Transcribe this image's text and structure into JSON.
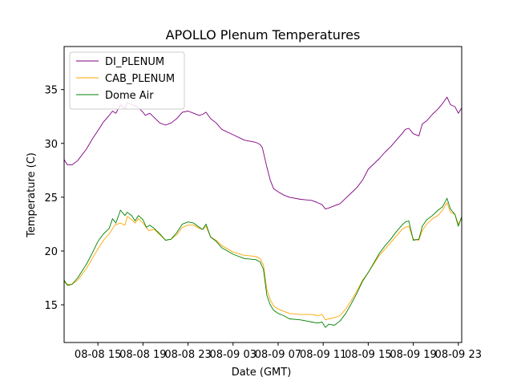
{
  "chart_data": {
    "type": "line",
    "title": "APOLLO Plenum Temperatures",
    "xlabel": "Date (GMT)",
    "ylabel": "Temperature (C)",
    "x_unit": "hours since 08-08 12:00 GMT",
    "xlim": [
      0,
      35.3
    ],
    "ylim": [
      11.5,
      39
    ],
    "x_ticks": [
      {
        "value": 3,
        "label": "08-08 15"
      },
      {
        "value": 7,
        "label": "08-08 19"
      },
      {
        "value": 11,
        "label": "08-08 23"
      },
      {
        "value": 15,
        "label": "08-09 03"
      },
      {
        "value": 19,
        "label": "08-09 07"
      },
      {
        "value": 23,
        "label": "08-09 11"
      },
      {
        "value": 27,
        "label": "08-09 15"
      },
      {
        "value": 31,
        "label": "08-09 19"
      },
      {
        "value": 35,
        "label": "08-09 23"
      }
    ],
    "y_ticks": [
      15,
      20,
      25,
      30,
      35
    ],
    "legend_position": "upper-left",
    "series": [
      {
        "name": "DI_PLENUM",
        "color": "#800080",
        "points": [
          [
            0,
            28.5
          ],
          [
            0.3,
            28.0
          ],
          [
            0.7,
            28.0
          ],
          [
            1.2,
            28.4
          ],
          [
            2,
            29.5
          ],
          [
            2.5,
            30.4
          ],
          [
            3,
            31.2
          ],
          [
            3.5,
            32.0
          ],
          [
            4,
            32.6
          ],
          [
            4.3,
            33.0
          ],
          [
            4.6,
            32.8
          ],
          [
            5,
            33.6
          ],
          [
            5.4,
            33.2
          ],
          [
            5.6,
            33.8
          ],
          [
            6,
            33.6
          ],
          [
            6.5,
            33.4
          ],
          [
            7,
            32.9
          ],
          [
            7.2,
            32.6
          ],
          [
            7.6,
            32.8
          ],
          [
            8,
            32.4
          ],
          [
            8.5,
            31.9
          ],
          [
            9,
            31.7
          ],
          [
            9.5,
            31.9
          ],
          [
            10,
            32.3
          ],
          [
            10.5,
            32.9
          ],
          [
            11,
            33.0
          ],
          [
            11.5,
            32.8
          ],
          [
            12,
            32.6
          ],
          [
            12.3,
            32.7
          ],
          [
            12.6,
            32.9
          ],
          [
            13,
            32.3
          ],
          [
            13.5,
            31.9
          ],
          [
            14,
            31.3
          ],
          [
            15,
            30.8
          ],
          [
            16,
            30.3
          ],
          [
            17,
            30.1
          ],
          [
            17.4,
            29.9
          ],
          [
            17.6,
            29.6
          ],
          [
            18,
            27.8
          ],
          [
            18.3,
            26.6
          ],
          [
            18.6,
            25.8
          ],
          [
            19,
            25.5
          ],
          [
            19.5,
            25.2
          ],
          [
            20,
            25.0
          ],
          [
            21,
            24.8
          ],
          [
            22,
            24.7
          ],
          [
            22.5,
            24.5
          ],
          [
            22.9,
            24.3
          ],
          [
            23.2,
            23.9
          ],
          [
            23.5,
            24.0
          ],
          [
            24,
            24.2
          ],
          [
            24.5,
            24.4
          ],
          [
            25,
            24.9
          ],
          [
            25.5,
            25.4
          ],
          [
            26,
            25.9
          ],
          [
            26.5,
            26.6
          ],
          [
            27,
            27.6
          ],
          [
            28,
            28.6
          ],
          [
            28.5,
            29.2
          ],
          [
            29,
            29.7
          ],
          [
            29.5,
            30.3
          ],
          [
            30,
            30.9
          ],
          [
            30.3,
            31.3
          ],
          [
            30.6,
            31.4
          ],
          [
            31,
            30.9
          ],
          [
            31.5,
            30.7
          ],
          [
            31.8,
            31.8
          ],
          [
            32.2,
            32.1
          ],
          [
            32.7,
            32.7
          ],
          [
            33.2,
            33.2
          ],
          [
            33.6,
            33.7
          ],
          [
            34,
            34.3
          ],
          [
            34.3,
            33.6
          ],
          [
            34.7,
            33.4
          ],
          [
            35,
            32.8
          ],
          [
            35.3,
            33.3
          ]
        ]
      },
      {
        "name": "CAB_PLENUM",
        "color": "#ffa500",
        "points": [
          [
            0,
            17.1
          ],
          [
            0.3,
            16.9
          ],
          [
            0.7,
            16.9
          ],
          [
            1.2,
            17.3
          ],
          [
            2,
            18.4
          ],
          [
            2.5,
            19.3
          ],
          [
            3,
            20.2
          ],
          [
            3.5,
            21.0
          ],
          [
            4,
            21.6
          ],
          [
            4.5,
            22.4
          ],
          [
            5,
            22.6
          ],
          [
            5.4,
            22.4
          ],
          [
            5.6,
            23.2
          ],
          [
            6,
            22.9
          ],
          [
            6.3,
            22.6
          ],
          [
            6.6,
            23.0
          ],
          [
            7,
            22.6
          ],
          [
            7.5,
            21.9
          ],
          [
            8,
            22.0
          ],
          [
            8.5,
            21.5
          ],
          [
            9,
            21.0
          ],
          [
            9.5,
            21.1
          ],
          [
            10,
            21.5
          ],
          [
            10.5,
            22.2
          ],
          [
            11,
            22.4
          ],
          [
            11.5,
            22.4
          ],
          [
            12,
            22.1
          ],
          [
            12.3,
            22.0
          ],
          [
            12.6,
            22.3
          ],
          [
            13,
            21.3
          ],
          [
            13.5,
            21.0
          ],
          [
            14,
            20.5
          ],
          [
            15,
            19.9
          ],
          [
            16,
            19.6
          ],
          [
            17,
            19.5
          ],
          [
            17.4,
            19.3
          ],
          [
            17.7,
            18.7
          ],
          [
            18,
            16.4
          ],
          [
            18.3,
            15.5
          ],
          [
            18.6,
            14.9
          ],
          [
            19,
            14.6
          ],
          [
            19.5,
            14.4
          ],
          [
            20,
            14.2
          ],
          [
            21,
            14.1
          ],
          [
            22,
            14.1
          ],
          [
            22.5,
            14.0
          ],
          [
            22.9,
            14.1
          ],
          [
            23.2,
            13.6
          ],
          [
            23.5,
            13.7
          ],
          [
            24,
            13.8
          ],
          [
            24.5,
            14.0
          ],
          [
            25,
            14.6
          ],
          [
            25.5,
            15.4
          ],
          [
            26,
            16.3
          ],
          [
            26.5,
            17.3
          ],
          [
            27,
            18.0
          ],
          [
            28,
            19.6
          ],
          [
            28.5,
            20.2
          ],
          [
            29,
            20.8
          ],
          [
            29.5,
            21.4
          ],
          [
            30,
            22.0
          ],
          [
            30.3,
            22.2
          ],
          [
            30.6,
            22.3
          ],
          [
            31,
            21.1
          ],
          [
            31.5,
            21.0
          ],
          [
            31.8,
            21.9
          ],
          [
            32.2,
            22.5
          ],
          [
            32.7,
            23.0
          ],
          [
            33.2,
            23.3
          ],
          [
            33.6,
            23.8
          ],
          [
            34,
            24.5
          ],
          [
            34.3,
            23.6
          ],
          [
            34.7,
            23.4
          ],
          [
            35,
            22.5
          ],
          [
            35.3,
            23.0
          ]
        ]
      },
      {
        "name": "Dome Air",
        "color": "#008000",
        "points": [
          [
            0,
            17.3
          ],
          [
            0.3,
            16.8
          ],
          [
            0.7,
            16.9
          ],
          [
            1.2,
            17.5
          ],
          [
            2,
            18.8
          ],
          [
            2.5,
            19.8
          ],
          [
            3,
            20.9
          ],
          [
            3.5,
            21.6
          ],
          [
            4,
            22.1
          ],
          [
            4.3,
            23.0
          ],
          [
            4.6,
            22.6
          ],
          [
            5,
            23.8
          ],
          [
            5.4,
            23.3
          ],
          [
            5.6,
            23.6
          ],
          [
            6,
            23.3
          ],
          [
            6.3,
            22.8
          ],
          [
            6.6,
            23.3
          ],
          [
            7,
            22.9
          ],
          [
            7.3,
            22.2
          ],
          [
            7.6,
            22.4
          ],
          [
            8,
            22.1
          ],
          [
            8.5,
            21.6
          ],
          [
            9,
            21.0
          ],
          [
            9.5,
            21.1
          ],
          [
            10,
            21.7
          ],
          [
            10.5,
            22.5
          ],
          [
            11,
            22.7
          ],
          [
            11.5,
            22.6
          ],
          [
            12,
            22.2
          ],
          [
            12.3,
            22.0
          ],
          [
            12.6,
            22.5
          ],
          [
            13,
            21.3
          ],
          [
            13.5,
            20.9
          ],
          [
            14,
            20.3
          ],
          [
            15,
            19.7
          ],
          [
            16,
            19.3
          ],
          [
            17,
            19.2
          ],
          [
            17.4,
            19.0
          ],
          [
            17.7,
            18.3
          ],
          [
            18,
            15.9
          ],
          [
            18.3,
            15.0
          ],
          [
            18.6,
            14.5
          ],
          [
            19,
            14.2
          ],
          [
            19.5,
            14.0
          ],
          [
            20,
            13.7
          ],
          [
            21,
            13.6
          ],
          [
            22,
            13.4
          ],
          [
            22.5,
            13.3
          ],
          [
            22.9,
            13.4
          ],
          [
            23.2,
            12.9
          ],
          [
            23.5,
            13.2
          ],
          [
            24,
            13.1
          ],
          [
            24.5,
            13.5
          ],
          [
            25,
            14.2
          ],
          [
            25.5,
            15.1
          ],
          [
            26,
            16.1
          ],
          [
            26.5,
            17.2
          ],
          [
            27,
            18.0
          ],
          [
            28,
            19.8
          ],
          [
            28.5,
            20.5
          ],
          [
            29,
            21.1
          ],
          [
            29.5,
            21.8
          ],
          [
            30,
            22.4
          ],
          [
            30.3,
            22.7
          ],
          [
            30.6,
            22.8
          ],
          [
            31,
            21.0
          ],
          [
            31.5,
            21.1
          ],
          [
            31.8,
            22.3
          ],
          [
            32.2,
            22.9
          ],
          [
            32.7,
            23.3
          ],
          [
            33.2,
            23.8
          ],
          [
            33.6,
            24.1
          ],
          [
            34,
            24.9
          ],
          [
            34.3,
            23.9
          ],
          [
            34.7,
            23.4
          ],
          [
            35,
            22.3
          ],
          [
            35.3,
            23.2
          ]
        ]
      }
    ]
  }
}
